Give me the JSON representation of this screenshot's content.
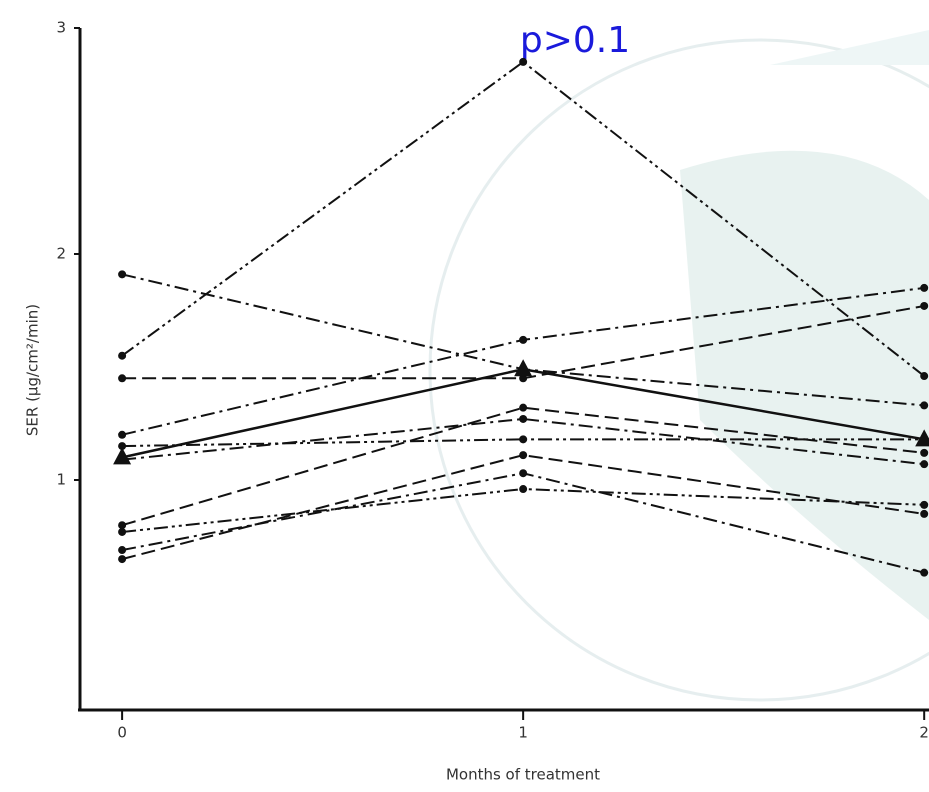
{
  "chart_data": {
    "type": "line",
    "annotation": "p>0.1",
    "annotation_color": "#1a1adb",
    "x_label": "Months of treatment",
    "y_label": "SER (μg/cm²/min)",
    "x": [
      0,
      1,
      2
    ],
    "xlim": [
      -0.105,
      2.012
    ],
    "xticks": [
      0,
      1,
      2
    ],
    "ylim": [
      0,
      3
    ],
    "yticks": [
      1,
      2,
      3
    ],
    "series": [
      {
        "color": "#111111",
        "line_style": "dashdotdot",
        "marker": "circle",
        "values": [
          1.55,
          2.85,
          1.46
        ]
      },
      {
        "color": "#111111",
        "line_style": "dashdot",
        "marker": "circle",
        "values": [
          1.91,
          1.49,
          1.33
        ]
      },
      {
        "color": "#111111",
        "line_style": "dashed",
        "marker": "circle",
        "values": [
          1.45,
          1.45,
          1.77
        ]
      },
      {
        "color": "#111111",
        "line_style": "dashdot",
        "marker": "circle",
        "values": [
          1.2,
          1.62,
          1.85
        ]
      },
      {
        "color": "#111111",
        "line_style": "dashdotdot",
        "marker": "circle",
        "values": [
          1.15,
          1.18,
          1.18
        ]
      },
      {
        "color": "#111111",
        "line_style": "dashdot",
        "marker": "circle",
        "values": [
          1.09,
          1.27,
          1.07
        ]
      },
      {
        "color": "#111111",
        "line_style": "dashed",
        "marker": "circle",
        "values": [
          0.8,
          1.32,
          1.12
        ]
      },
      {
        "color": "#111111",
        "line_style": "dashdotdot",
        "marker": "circle",
        "values": [
          0.77,
          0.96,
          0.89
        ]
      },
      {
        "color": "#111111",
        "line_style": "dashdot",
        "marker": "circle",
        "values": [
          0.69,
          1.03,
          0.59
        ]
      },
      {
        "color": "#111111",
        "line_style": "dashed",
        "marker": "circle",
        "values": [
          0.65,
          1.11,
          0.85
        ]
      },
      {
        "color": "#111111",
        "line_style": "solid",
        "marker": "triangle",
        "values": [
          1.1,
          1.49,
          1.18
        ]
      }
    ]
  }
}
